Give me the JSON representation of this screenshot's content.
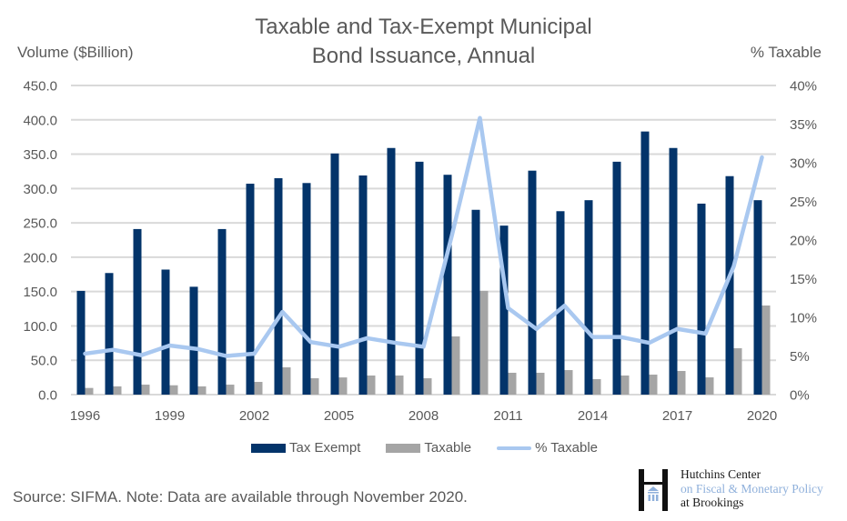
{
  "chart_data": {
    "type": "bar",
    "title": "Taxable and Tax-Exempt Municipal Bond Issuance, Annual",
    "title_lines": [
      "Taxable and Tax-Exempt Municipal",
      "Bond Issuance, Annual"
    ],
    "xlabel": "",
    "ylabel": "Volume ($Billion)",
    "y2label": "% Taxable",
    "ylim": [
      0,
      450
    ],
    "y2lim": [
      0,
      40
    ],
    "yticks": [
      "0.0",
      "50.0",
      "100.0",
      "150.0",
      "200.0",
      "250.0",
      "300.0",
      "350.0",
      "400.0",
      "450.0"
    ],
    "y2ticks": [
      "0%",
      "5%",
      "10%",
      "15%",
      "20%",
      "25%",
      "30%",
      "35%",
      "40%"
    ],
    "xticks": [
      "1996",
      "1999",
      "2002",
      "2005",
      "2008",
      "2011",
      "2014",
      "2017",
      "2020"
    ],
    "grid": true,
    "legend_position": "bottom",
    "categories": [
      "1996",
      "1997",
      "1998",
      "1999",
      "2000",
      "2001",
      "2002",
      "2003",
      "2004",
      "2005",
      "2006",
      "2007",
      "2008",
      "2009",
      "2010",
      "2011",
      "2012",
      "2013",
      "2014",
      "2015",
      "2016",
      "2017",
      "2018",
      "2019",
      "2020"
    ],
    "series": [
      {
        "name": "Tax Exempt",
        "type": "bar",
        "axis": "left",
        "color": "#03346A",
        "values": [
          151,
          177,
          241,
          182,
          157,
          241,
          307,
          315,
          308,
          351,
          319,
          359,
          339,
          320,
          269,
          246,
          326,
          267,
          283,
          339,
          383,
          359,
          278,
          318,
          283
        ]
      },
      {
        "name": "Taxable",
        "type": "bar",
        "axis": "left",
        "color": "#A5A5A5",
        "values": [
          9.7,
          12,
          14.5,
          13.6,
          12,
          14.5,
          18.5,
          39.7,
          23.8,
          25,
          27.8,
          27.8,
          23.8,
          84.7,
          151,
          31.8,
          31.8,
          35.7,
          22.5,
          27.8,
          29.1,
          34.4,
          25.1,
          67.5,
          129.7
        ]
      },
      {
        "name": "% Taxable",
        "type": "line",
        "axis": "right",
        "color": "#A9C8F0",
        "values": [
          5.3,
          5.8,
          5.1,
          6.35,
          5.9,
          5.0,
          5.3,
          10.7,
          6.8,
          6.2,
          7.3,
          6.7,
          6.2,
          20.5,
          35.8,
          11.2,
          8.5,
          11.5,
          7.45,
          7.45,
          6.7,
          8.5,
          7.9,
          16.6,
          30.7
        ]
      }
    ]
  },
  "legend": {
    "items": [
      {
        "label": "Tax Exempt",
        "color": "#03346A",
        "kind": "bar"
      },
      {
        "label": "Taxable",
        "color": "#A5A5A5",
        "kind": "bar"
      },
      {
        "label": "% Taxable",
        "color": "#A9C8F0",
        "kind": "line"
      }
    ]
  },
  "footer": {
    "source": "Source: SIFMA. Note: Data are available through November 2020."
  },
  "logo": {
    "line1": "Hutchins Center",
    "line2": "on Fiscal & Monetary Policy",
    "line3": "at Brookings",
    "mark_icon": "hutchins-h-logo-icon"
  },
  "colors": {
    "gridline": "#D9D9D9",
    "text": "#595959"
  }
}
